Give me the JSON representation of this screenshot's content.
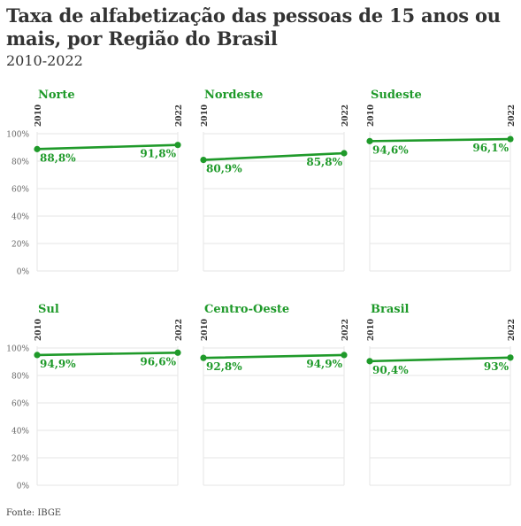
{
  "title": "Taxa de alfabetização das pessoas de 15 anos ou mais, por Região do Brasil",
  "subtitle": "2010-2022",
  "source": "Fonte: IBGE",
  "colors": {
    "line": "#1f9a2a",
    "grid": "#e6e6e6",
    "axis_text": "#666666",
    "panel_title": "#1f9a2a"
  },
  "chart_data": {
    "type": "line",
    "ylim": [
      0,
      100
    ],
    "yticks": [
      "0%",
      "20%",
      "40%",
      "60%",
      "80%",
      "100%"
    ],
    "x": [
      "2010",
      "2022"
    ],
    "grid": true,
    "panels": [
      {
        "name": "Norte",
        "values": [
          88.8,
          91.8
        ],
        "labels": [
          "88,8%",
          "91,8%"
        ]
      },
      {
        "name": "Nordeste",
        "values": [
          80.9,
          85.8
        ],
        "labels": [
          "80,9%",
          "85,8%"
        ]
      },
      {
        "name": "Sudeste",
        "values": [
          94.6,
          96.1
        ],
        "labels": [
          "94,6%",
          "96,1%"
        ]
      },
      {
        "name": "Sul",
        "values": [
          94.9,
          96.6
        ],
        "labels": [
          "94,9%",
          "96,6%"
        ]
      },
      {
        "name": "Centro-Oeste",
        "values": [
          92.8,
          94.9
        ],
        "labels": [
          "92,8%",
          "94,9%"
        ]
      },
      {
        "name": "Brasil",
        "values": [
          90.4,
          93.0
        ],
        "labels": [
          "90,4%",
          "93%"
        ]
      }
    ]
  }
}
